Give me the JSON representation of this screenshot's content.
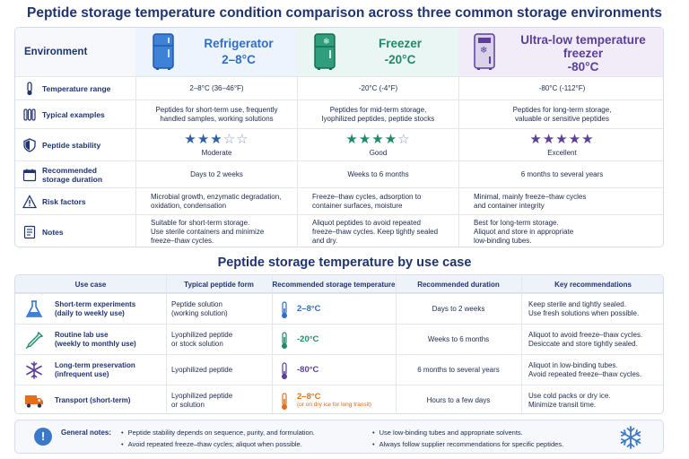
{
  "title": "Peptide storage temperature condition comparison across three common storage environments",
  "comparison": {
    "env_label": "Environment",
    "columns": [
      {
        "name": "Refrigerator",
        "temp": "2–8°C",
        "color": "#2f6fc4",
        "icon": "refrigerator-icon"
      },
      {
        "name": "Freezer",
        "temp": "-20°C",
        "color": "#1e8a6a",
        "icon": "freezer-icon"
      },
      {
        "name": "Ultra-low temperature freezer",
        "temp": "-80°C",
        "color": "#5b3f9b",
        "icon": "ultra-low-freezer-icon"
      }
    ],
    "rows": {
      "temperature_range": {
        "label": "Temperature range",
        "values": [
          "2–8°C (36–46°F)",
          "-20°C (-4°F)",
          "-80°C (-112°F)"
        ]
      },
      "typical_examples": {
        "label": "Typical examples",
        "values": [
          [
            "Peptides for short-term use, frequently",
            "handled samples, working solutions"
          ],
          [
            "Peptides for mid-term storage,",
            "lyophilized peptides, peptide stocks"
          ],
          [
            "Peptides for long-term storage,",
            "valuable or sensitive peptides"
          ]
        ]
      },
      "peptide_stability": {
        "label": "Peptide stability",
        "ratings": [
          3,
          4,
          5
        ],
        "values": [
          "Moderate",
          "Good",
          "Excellent"
        ]
      },
      "recommended_duration": {
        "label": [
          "Recommended",
          "storage duration"
        ],
        "values": [
          "Days to 2 weeks",
          "Weeks to 6 months",
          "6 months to several years"
        ]
      },
      "risk_factors": {
        "label": "Risk factors",
        "values": [
          [
            "Microbial growth, enzymatic degradation,",
            "oxidation, condensation"
          ],
          [
            "Freeze–thaw cycles, adsorption to",
            "container surfaces, moisture"
          ],
          [
            "Minimal, mainly freeze–thaw cycles",
            "and container integrity"
          ]
        ]
      },
      "notes": {
        "label": "Notes",
        "values": [
          [
            "Suitable for short-term storage.",
            "Use sterile containers and minimize",
            "freeze–thaw cycles."
          ],
          [
            "Aliquot peptides to avoid repeated",
            "freeze–thaw cycles. Keep tightly sealed",
            "and dry."
          ],
          [
            "Best for long-term storage.",
            "Aliquot and store in appropriate",
            "low-binding tubes."
          ]
        ]
      }
    }
  },
  "use_case_title": "Peptide storage temperature by use case",
  "use_case_table": {
    "headers": [
      "Use case",
      "Typical peptide form",
      "Recommended storage temperature",
      "Recommended duration",
      "Key recommendations"
    ],
    "rows": [
      {
        "use_case": [
          "Short-term experiments",
          "(daily to weekly use)"
        ],
        "form": [
          "Peptide solution",
          "(working solution)"
        ],
        "temp": "2–8°C",
        "temp_note": "",
        "temp_color": "#2f6fc4",
        "duration": "Days to 2 weeks",
        "rec": [
          "Keep sterile and tightly sealed.",
          "Use fresh solutions when possible."
        ],
        "icon": "flask-icon"
      },
      {
        "use_case": [
          "Routine lab use",
          "(weekly to monthly use)"
        ],
        "form": [
          "Lyophilized peptide",
          "or stock solution"
        ],
        "temp": "-20°C",
        "temp_note": "",
        "temp_color": "#1e8a6a",
        "duration": "Weeks to 6 months",
        "rec": [
          "Aliquot to avoid freeze–thaw cycles.",
          "Desiccate and store tightly sealed."
        ],
        "icon": "pipette-icon"
      },
      {
        "use_case": [
          "Long-term preservation",
          "(infrequent use)"
        ],
        "form": [
          "Lyophilized peptide"
        ],
        "temp": "-80°C",
        "temp_note": "",
        "temp_color": "#5b3f9b",
        "duration": "6 months to several years",
        "rec": [
          "Aliquot in low-binding tubes.",
          "Avoid repeated freeze–thaw cycles."
        ],
        "icon": "snowflake-icon"
      },
      {
        "use_case": [
          "Transport (short-term)"
        ],
        "form": [
          "Lyophilized peptide",
          "or solution"
        ],
        "temp": "2–8°C",
        "temp_note": "(or on dry ice for long transit)",
        "temp_color": "#e0701e",
        "duration": "Hours to a few days",
        "rec": [
          "Use cold packs or dry ice.",
          "Minimize transit time."
        ],
        "icon": "truck-icon"
      }
    ]
  },
  "general_notes": {
    "title": "General notes:",
    "items": [
      "Peptide stability depends on sequence, purity, and formulation.",
      "Avoid repeated freeze–thaw cycles; aliquot when possible.",
      "Use low-binding tubes and appropriate solvents.",
      "Always follow supplier recommendations for specific peptides."
    ]
  }
}
